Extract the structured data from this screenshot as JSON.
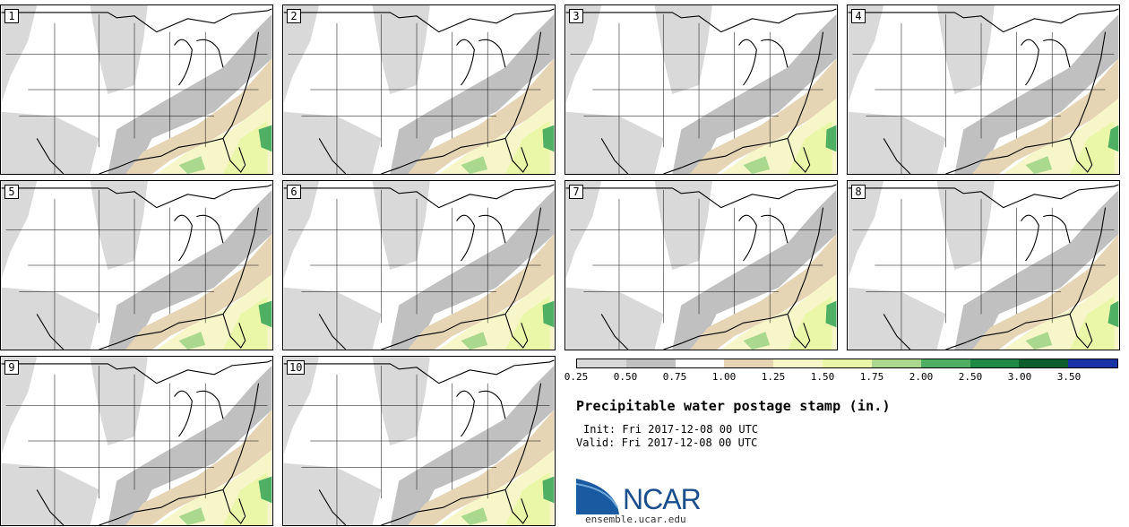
{
  "panels": [
    {
      "label": "1"
    },
    {
      "label": "2"
    },
    {
      "label": "3"
    },
    {
      "label": "4"
    },
    {
      "label": "5"
    },
    {
      "label": "6"
    },
    {
      "label": "7"
    },
    {
      "label": "8"
    },
    {
      "label": "9"
    },
    {
      "label": "10"
    }
  ],
  "colorbar": {
    "colors": [
      "#d9d9d9",
      "#c0c0c0",
      "#ffffff",
      "#e5d5b5",
      "#f6f6c8",
      "#eaf7a8",
      "#a9d88e",
      "#4fb064",
      "#1e8a45",
      "#0c5e2e",
      "#1a32a8"
    ],
    "ticks": [
      "0.25",
      "0.50",
      "0.75",
      "1.00",
      "1.25",
      "1.50",
      "1.75",
      "2.00",
      "2.50",
      "3.00",
      "3.50"
    ]
  },
  "title": "Precipitable water postage stamp (in.)",
  "init": "Init: Fri 2017-12-08 00 UTC",
  "valid": "Valid: Fri 2017-12-08 00 UTC",
  "logo": {
    "text": "NCAR",
    "website": "ensemble.ucar.edu"
  }
}
